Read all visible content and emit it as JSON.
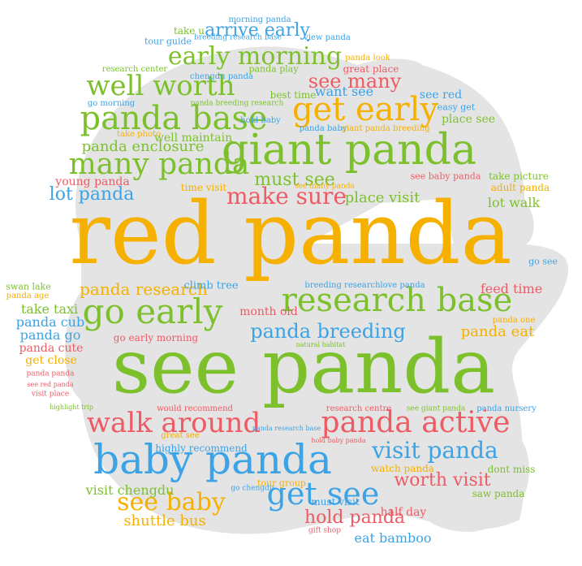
{
  "colors": {
    "green": "#7cc12c",
    "orange": "#f5b000",
    "blue": "#3ba3e6",
    "red": "#ee5b64",
    "shape": "#e4e4e4"
  },
  "words": [
    {
      "text": "red panda",
      "color": "orange"
    },
    {
      "text": "see panda",
      "color": "green"
    },
    {
      "text": "giant panda",
      "color": "green"
    },
    {
      "text": "baby panda",
      "color": "blue"
    },
    {
      "text": "research base",
      "color": "green"
    },
    {
      "text": "go early",
      "color": "green"
    },
    {
      "text": "panda active",
      "color": "red"
    },
    {
      "text": "get early",
      "color": "orange"
    },
    {
      "text": "panda base",
      "color": "green"
    },
    {
      "text": "walk around",
      "color": "red"
    },
    {
      "text": "many panda",
      "color": "green"
    },
    {
      "text": "well worth",
      "color": "green"
    },
    {
      "text": "early morning",
      "color": "green"
    },
    {
      "text": "get see",
      "color": "blue"
    },
    {
      "text": "see baby",
      "color": "orange"
    },
    {
      "text": "visit panda",
      "color": "blue"
    },
    {
      "text": "panda breeding",
      "color": "blue"
    },
    {
      "text": "make sure",
      "color": "red"
    },
    {
      "text": "must see",
      "color": "green"
    },
    {
      "text": "see many",
      "color": "red"
    },
    {
      "text": "arrive early",
      "color": "blue"
    },
    {
      "text": "worth visit",
      "color": "red"
    },
    {
      "text": "hold panda",
      "color": "red"
    },
    {
      "text": "lot panda",
      "color": "blue"
    },
    {
      "text": "panda research",
      "color": "orange"
    },
    {
      "text": "panda enclosure",
      "color": "green"
    },
    {
      "text": "place visit",
      "color": "green"
    },
    {
      "text": "shuttle bus",
      "color": "orange"
    },
    {
      "text": "eat bamboo",
      "color": "blue"
    },
    {
      "text": "panda eat",
      "color": "orange"
    },
    {
      "text": "lot walk",
      "color": "green"
    },
    {
      "text": "visit chengdu",
      "color": "green"
    },
    {
      "text": "want see",
      "color": "blue"
    },
    {
      "text": "place see",
      "color": "green"
    },
    {
      "text": "feed time",
      "color": "red"
    },
    {
      "text": "take taxi",
      "color": "green"
    },
    {
      "text": "panda cub",
      "color": "blue"
    },
    {
      "text": "panda go",
      "color": "blue"
    },
    {
      "text": "panda cute",
      "color": "red"
    },
    {
      "text": "get close",
      "color": "orange"
    },
    {
      "text": "month old",
      "color": "red"
    },
    {
      "text": "half day",
      "color": "red"
    },
    {
      "text": "well maintain",
      "color": "green"
    },
    {
      "text": "young panda",
      "color": "red"
    },
    {
      "text": "see red",
      "color": "blue"
    },
    {
      "text": "best time",
      "color": "green"
    },
    {
      "text": "great place",
      "color": "red"
    },
    {
      "text": "take picture",
      "color": "green"
    },
    {
      "text": "adult panda",
      "color": "orange"
    },
    {
      "text": "see baby panda",
      "color": "red"
    },
    {
      "text": "climb tree",
      "color": "blue"
    },
    {
      "text": "go early morning",
      "color": "red"
    },
    {
      "text": "highly recommend",
      "color": "blue"
    },
    {
      "text": "watch panda",
      "color": "orange"
    },
    {
      "text": "dont miss",
      "color": "green"
    },
    {
      "text": "saw panda",
      "color": "green"
    },
    {
      "text": "must visit",
      "color": "blue"
    },
    {
      "text": "tour group",
      "color": "orange"
    },
    {
      "text": "time visit",
      "color": "orange"
    },
    {
      "text": "take u",
      "color": "green"
    },
    {
      "text": "tour guide",
      "color": "blue"
    },
    {
      "text": "morning panda",
      "color": "blue"
    },
    {
      "text": "view panda",
      "color": "blue"
    },
    {
      "text": "breeding research base",
      "color": "blue"
    },
    {
      "text": "research center",
      "color": "green"
    },
    {
      "text": "chengdu panda",
      "color": "blue"
    },
    {
      "text": "panda play",
      "color": "green"
    },
    {
      "text": "panda look",
      "color": "orange"
    },
    {
      "text": "go morning",
      "color": "blue"
    },
    {
      "text": "panda breeding research",
      "color": "green"
    },
    {
      "text": "easy get",
      "color": "blue"
    },
    {
      "text": "hold baby",
      "color": "blue"
    },
    {
      "text": "panda baby",
      "color": "blue"
    },
    {
      "text": "giant panda breeding",
      "color": "orange"
    },
    {
      "text": "take photo",
      "color": "orange"
    },
    {
      "text": "see many panda",
      "color": "orange"
    },
    {
      "text": "swan lake",
      "color": "green"
    },
    {
      "text": "panda age",
      "color": "orange"
    },
    {
      "text": "breeding research",
      "color": "blue"
    },
    {
      "text": "love panda",
      "color": "blue"
    },
    {
      "text": "go see",
      "color": "blue"
    },
    {
      "text": "panda one",
      "color": "orange"
    },
    {
      "text": "natural habitat",
      "color": "green"
    },
    {
      "text": "panda panda",
      "color": "red"
    },
    {
      "text": "see red panda",
      "color": "red"
    },
    {
      "text": "visit place",
      "color": "red"
    },
    {
      "text": "highlight trip",
      "color": "green"
    },
    {
      "text": "would recommend",
      "color": "red"
    },
    {
      "text": "research centre",
      "color": "red"
    },
    {
      "text": "see giant panda",
      "color": "green"
    },
    {
      "text": "panda nursery",
      "color": "blue"
    },
    {
      "text": "panda research base",
      "color": "blue"
    },
    {
      "text": "great see",
      "color": "orange"
    },
    {
      "text": "hold baby panda",
      "color": "red"
    },
    {
      "text": "go chengdu",
      "color": "blue"
    },
    {
      "text": "gift shop",
      "color": "red"
    }
  ]
}
